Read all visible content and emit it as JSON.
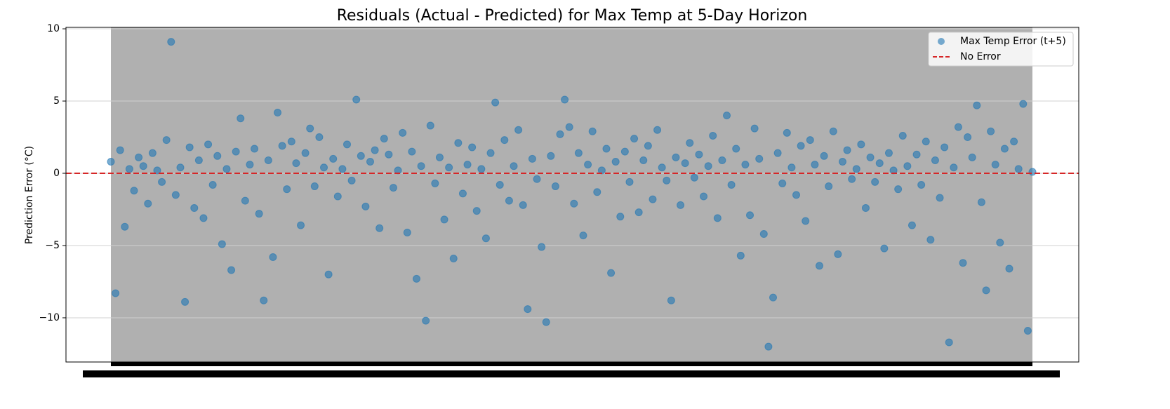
{
  "chart_data": {
    "type": "scatter",
    "title": "Residuals (Actual - Predicted) for Max Temp at 5-Day Horizon",
    "y_label": "Prediction Error (°C)",
    "ylim": [
      -13.06,
      10.1
    ],
    "yticks": [
      {
        "value": -10,
        "label": "−10"
      },
      {
        "value": -5,
        "label": "−5"
      },
      0,
      5,
      10
    ],
    "grid": true,
    "legend": "upper right",
    "series": [
      {
        "name": "Max Temp Error (t+5)",
        "color": "#1f77b4",
        "values": [
          0.8,
          -8.3,
          1.6,
          -3.7,
          0.3,
          -1.2,
          1.1,
          0.5,
          -2.1,
          1.4,
          0.2,
          -0.6,
          2.3,
          9.1,
          -1.5,
          0.4,
          -8.9,
          1.8,
          -2.4,
          0.9,
          -3.1,
          2.0,
          -0.8,
          1.2,
          -4.9,
          0.3,
          -6.7,
          1.5,
          3.8,
          -1.9,
          0.6,
          1.7,
          -2.8,
          -8.8,
          0.9,
          -5.8,
          4.2,
          1.9,
          -1.1,
          2.2,
          0.7,
          -3.6,
          1.4,
          3.1,
          -0.9,
          2.5,
          0.4,
          -7.0,
          1.0,
          -1.6,
          0.3,
          2.0,
          -0.5,
          5.1,
          1.2,
          -2.3,
          0.8,
          1.6,
          -3.8,
          2.4,
          1.3,
          -1.0,
          0.2,
          2.8,
          -4.1,
          1.5,
          -7.3,
          0.5,
          -10.2,
          3.3,
          -0.7,
          1.1,
          -3.2,
          0.4,
          -5.9,
          2.1,
          -1.4,
          0.6,
          1.8,
          -2.6,
          0.3,
          -4.5,
          1.4,
          4.9,
          -0.8,
          2.3,
          -1.9,
          0.5,
          3.0,
          -2.2,
          -9.4,
          1.0,
          -0.4,
          -5.1,
          -10.3,
          1.2,
          -0.9,
          2.7,
          5.1,
          3.2,
          -2.1,
          1.4,
          -4.3,
          0.6,
          2.9,
          -1.3,
          0.2,
          1.7,
          -6.9,
          0.8,
          -3.0,
          1.5,
          -0.6,
          2.4,
          -2.7,
          0.9,
          1.9,
          -1.8,
          3.0,
          0.4,
          -0.5,
          -8.8,
          1.1,
          -2.2,
          0.7,
          2.1,
          -0.3,
          1.3,
          -1.6,
          0.5,
          2.6,
          -3.1,
          0.9,
          4.0,
          -0.8,
          1.7,
          -5.7,
          0.6,
          -2.9,
          3.1,
          1.0,
          -4.2,
          -12.0,
          -8.6,
          1.4,
          -0.7,
          2.8,
          0.4,
          -1.5,
          1.9,
          -3.3,
          2.3,
          0.6,
          -6.4,
          1.2,
          -0.9,
          2.9,
          -5.6,
          0.8,
          1.6,
          -0.4,
          0.3,
          2.0,
          -2.4,
          1.1,
          -0.6,
          0.7,
          -5.2,
          1.4,
          0.2,
          -1.1,
          2.6,
          0.5,
          -3.6,
          1.3,
          -0.8,
          2.2,
          -4.6,
          0.9,
          -1.7,
          1.8,
          -11.7,
          0.4,
          3.2,
          -6.2,
          2.5,
          1.1,
          4.7,
          -2.0,
          -8.1,
          2.9,
          0.6,
          -4.8,
          1.7,
          -6.6,
          2.2,
          0.3,
          4.8,
          -10.9,
          0.1
        ]
      }
    ],
    "reference_line": {
      "name": "No Error",
      "value": 0,
      "color": "#d62728"
    }
  }
}
